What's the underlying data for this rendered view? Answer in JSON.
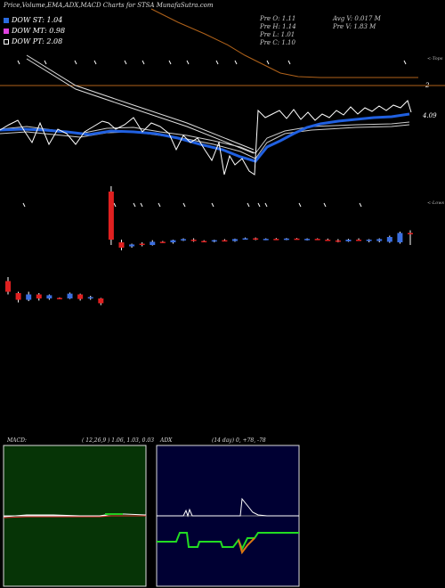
{
  "header": {
    "title": "Price,Volume,EMA,ADX,MACD Charts for STSA MunafaSutra.com"
  },
  "legend": {
    "dow_st": "DOW ST: 1.04",
    "dow_mt": "DOW MT: 0.98",
    "dow_pt": "DOW PT: 2.08"
  },
  "info": {
    "pre_o": "Pre  O: 1.11",
    "pre_h": "Pre  H: 1.14",
    "pre_l": "Pre  L: 1.01",
    "pre_c": "Pre  C: 1.10",
    "avg_v": "Avg V: 0.017 M",
    "pre_v": "Pre  V: 1.83 M"
  },
  "labels": {
    "tops": "<-Tops",
    "lows": "<-Lows",
    "level_2": "2",
    "level_409": "4.09"
  },
  "macd": {
    "title": "MACD:",
    "params": "( 12,26,9 ) 1.06,  1.03,  0.03"
  },
  "adx": {
    "title": "ADX",
    "params": "(14  day) 0,  +78,  -78"
  },
  "colors": {
    "background": "#000000",
    "up": "#3b6fe0",
    "down": "#e02020",
    "ema_long": "#b0621a",
    "ema_mid": "#2060e0",
    "price_line": "#ffffff",
    "macd_bg": "#063406",
    "adx_bg": "#000033",
    "adx_plus": "#22dd22",
    "adx_minus": "#dd7711"
  },
  "chart_data": {
    "type": "candlestick",
    "x": "40 recent trading sessions (dates not shown)",
    "candles": [
      {
        "o": 2.45,
        "h": 2.6,
        "l": 1.95,
        "c": 2.05
      },
      {
        "o": 2.0,
        "h": 2.05,
        "l": 1.65,
        "c": 1.75
      },
      {
        "o": 1.75,
        "h": 2.05,
        "l": 1.7,
        "c": 1.95
      },
      {
        "o": 1.95,
        "h": 2.0,
        "l": 1.72,
        "c": 1.8
      },
      {
        "o": 1.8,
        "h": 1.95,
        "l": 1.75,
        "c": 1.92
      },
      {
        "o": 1.82,
        "h": 1.84,
        "l": 1.78,
        "c": 1.8
      },
      {
        "o": 1.8,
        "h": 2.02,
        "l": 1.78,
        "c": 1.98
      },
      {
        "o": 1.95,
        "h": 1.98,
        "l": 1.72,
        "c": 1.78
      },
      {
        "o": 1.8,
        "h": 1.9,
        "l": 1.75,
        "c": 1.85
      },
      {
        "o": 1.8,
        "h": 1.82,
        "l": 1.55,
        "c": 1.62
      },
      {
        "o": 5.8,
        "h": 6.0,
        "l": 3.8,
        "c": 4.0
      },
      {
        "o": 3.9,
        "h": 4.0,
        "l": 3.6,
        "c": 3.7
      },
      {
        "o": 3.75,
        "h": 3.85,
        "l": 3.7,
        "c": 3.82
      },
      {
        "o": 3.85,
        "h": 3.9,
        "l": 3.75,
        "c": 3.8
      },
      {
        "o": 3.8,
        "h": 3.98,
        "l": 3.78,
        "c": 3.92
      },
      {
        "o": 3.92,
        "h": 3.95,
        "l": 3.88,
        "c": 3.9
      },
      {
        "o": 3.9,
        "h": 4.0,
        "l": 3.85,
        "c": 3.98
      },
      {
        "o": 3.98,
        "h": 4.05,
        "l": 3.95,
        "c": 4.02
      },
      {
        "o": 4.0,
        "h": 4.05,
        "l": 3.92,
        "c": 3.95
      },
      {
        "o": 3.95,
        "h": 3.98,
        "l": 3.9,
        "c": 3.94
      },
      {
        "o": 3.94,
        "h": 4.0,
        "l": 3.9,
        "c": 3.98
      },
      {
        "o": 3.98,
        "h": 4.02,
        "l": 3.95,
        "c": 3.97
      },
      {
        "o": 3.95,
        "h": 4.04,
        "l": 3.92,
        "c": 4.02
      },
      {
        "o": 4.02,
        "h": 4.08,
        "l": 4.0,
        "c": 4.05
      },
      {
        "o": 4.05,
        "h": 4.08,
        "l": 3.98,
        "c": 4.0
      },
      {
        "o": 4.0,
        "h": 4.05,
        "l": 3.98,
        "c": 4.03
      },
      {
        "o": 4.03,
        "h": 4.06,
        "l": 4.0,
        "c": 4.01
      },
      {
        "o": 4.0,
        "h": 4.06,
        "l": 3.98,
        "c": 4.04
      },
      {
        "o": 4.04,
        "h": 4.06,
        "l": 4.0,
        "c": 4.02
      },
      {
        "o": 4.0,
        "h": 4.05,
        "l": 3.97,
        "c": 4.03
      },
      {
        "o": 4.03,
        "h": 4.05,
        "l": 3.99,
        "c": 4.0
      },
      {
        "o": 4.0,
        "h": 4.04,
        "l": 3.95,
        "c": 3.97
      },
      {
        "o": 3.97,
        "h": 4.02,
        "l": 3.9,
        "c": 3.95
      },
      {
        "o": 3.94,
        "h": 4.03,
        "l": 3.92,
        "c": 4.0
      },
      {
        "o": 4.0,
        "h": 4.05,
        "l": 3.95,
        "c": 3.98
      },
      {
        "o": 3.95,
        "h": 4.02,
        "l": 3.9,
        "c": 4.0
      },
      {
        "o": 3.95,
        "h": 4.05,
        "l": 3.9,
        "c": 4.02
      },
      {
        "o": 3.92,
        "h": 4.15,
        "l": 3.88,
        "c": 4.1
      },
      {
        "o": 3.9,
        "h": 4.3,
        "l": 3.85,
        "c": 4.25
      },
      {
        "o": 4.25,
        "h": 4.35,
        "l": 3.8,
        "c": 4.2
      }
    ],
    "ylim": [
      1.3,
      6.3
    ]
  }
}
